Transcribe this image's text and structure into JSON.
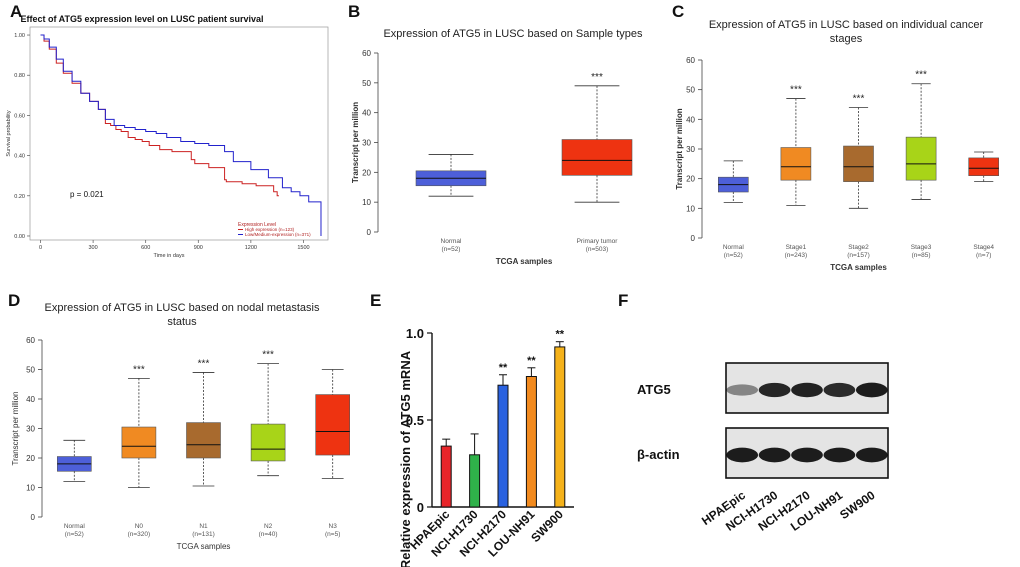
{
  "panel_labels": {
    "A": "A",
    "B": "B",
    "C": "C",
    "D": "D",
    "E": "E",
    "F": "F"
  },
  "colors": {
    "high": "#cc2222",
    "low": "#2222cc",
    "normal_box": "#4d5fd9",
    "primary_box": "#ee3311",
    "stage1": "#f08a22",
    "stage2": "#a86a2e",
    "stage3": "#a8d418",
    "stage4": "#ee3311",
    "bar_hpaepic": "#e8252a",
    "bar_h1730": "#2fb24a",
    "bar_h2170": "#2a62e0",
    "bar_nh91": "#f28a1e",
    "bar_sw900": "#f5b21a"
  },
  "chart_data": [
    {
      "id": "A",
      "type": "line",
      "title": "Effect of ATG5 expression level on LUSC patient survival",
      "xlabel": "Time in days",
      "ylabel": "Survival probability",
      "xlim": [
        -60,
        1640
      ],
      "ylim": [
        -0.02,
        1.04
      ],
      "xticks": [
        0,
        300,
        600,
        900,
        1200,
        1500
      ],
      "xtick_labels": [
        "0",
        "300",
        "600",
        "900",
        "1200",
        "1500"
      ],
      "yticks": [
        0,
        0.2,
        0.4,
        0.6,
        0.8,
        1.0
      ],
      "ytick_labels": [
        "0.00",
        "0.20",
        "0.40",
        "0.60",
        "0.80",
        "1.00"
      ],
      "annotation": "p = 0.021",
      "legend_title": "Expression Level",
      "series": [
        {
          "name": "High expression (n=123)",
          "color_key": "high",
          "x": [
            0,
            20,
            50,
            90,
            130,
            180,
            230,
            280,
            330,
            370,
            400,
            430,
            460,
            500,
            540,
            580,
            620,
            680,
            750,
            860,
            880,
            960,
            1050,
            1060,
            1150,
            1230,
            1330,
            1350,
            1360
          ],
          "y": [
            1.0,
            0.97,
            0.93,
            0.86,
            0.81,
            0.76,
            0.71,
            0.67,
            0.63,
            0.56,
            0.55,
            0.53,
            0.52,
            0.49,
            0.48,
            0.47,
            0.45,
            0.43,
            0.42,
            0.38,
            0.36,
            0.34,
            0.28,
            0.27,
            0.26,
            0.25,
            0.22,
            0.2,
            0.2
          ]
        },
        {
          "name": "Low/Medium-expression (n=371)",
          "color_key": "low",
          "x": [
            0,
            20,
            50,
            90,
            130,
            180,
            230,
            280,
            330,
            370,
            420,
            480,
            540,
            600,
            660,
            720,
            800,
            880,
            960,
            1050,
            1100,
            1200,
            1300,
            1380,
            1430,
            1480,
            1530,
            1600,
            1600
          ],
          "y": [
            1.0,
            0.98,
            0.94,
            0.88,
            0.82,
            0.77,
            0.71,
            0.67,
            0.63,
            0.58,
            0.55,
            0.54,
            0.53,
            0.52,
            0.51,
            0.49,
            0.47,
            0.46,
            0.45,
            0.42,
            0.37,
            0.33,
            0.29,
            0.24,
            0.22,
            0.2,
            0.17,
            0.14,
            0.0
          ]
        }
      ]
    },
    {
      "id": "B",
      "type": "box",
      "title": "Expression of ATG5 in LUSC based on Sample types",
      "xlabel": "TCGA samples",
      "ylabel": "Transcript per million",
      "ylim": [
        0,
        60
      ],
      "yticks": [
        0,
        10,
        20,
        30,
        40,
        50,
        60
      ],
      "categories": [
        "Normal",
        "Primary tumor"
      ],
      "n_labels": [
        "(n=52)",
        "(n=503)"
      ],
      "boxes": [
        {
          "min": 12,
          "q1": 15.5,
          "median": 18,
          "q3": 20.5,
          "max": 26,
          "color_key": "normal_box",
          "sig": ""
        },
        {
          "min": 10,
          "q1": 19,
          "median": 24,
          "q3": 31,
          "max": 49,
          "color_key": "primary_box",
          "sig": "***"
        }
      ]
    },
    {
      "id": "C",
      "type": "box",
      "title": "Expression of ATG5 in LUSC based on individual cancer stages",
      "title_lines": [
        "Expression of ATG5 in LUSC based on individual cancer",
        "stages"
      ],
      "xlabel": "TCGA samples",
      "ylabel": "Transcript per million",
      "ylim": [
        0,
        60
      ],
      "yticks": [
        0,
        10,
        20,
        30,
        40,
        50,
        60
      ],
      "categories": [
        "Normal",
        "Stage1",
        "Stage2",
        "Stage3",
        "Stage4"
      ],
      "n_labels": [
        "(n=52)",
        "(n=243)",
        "(n=157)",
        "(n=85)",
        "(n=7)"
      ],
      "boxes": [
        {
          "min": 12,
          "q1": 15.5,
          "median": 18,
          "q3": 20.5,
          "max": 26,
          "color_key": "normal_box",
          "sig": ""
        },
        {
          "min": 11,
          "q1": 19.5,
          "median": 24,
          "q3": 30.5,
          "max": 47,
          "color_key": "stage1",
          "sig": "***"
        },
        {
          "min": 10,
          "q1": 19,
          "median": 24,
          "q3": 31,
          "max": 44,
          "color_key": "stage2",
          "sig": "***"
        },
        {
          "min": 13,
          "q1": 19.5,
          "median": 25,
          "q3": 34,
          "max": 52,
          "color_key": "stage3",
          "sig": "***"
        },
        {
          "min": 19,
          "q1": 21,
          "median": 23.5,
          "q3": 27,
          "max": 29,
          "color_key": "stage4",
          "sig": ""
        }
      ]
    },
    {
      "id": "D",
      "type": "box",
      "title": "Expression of ATG5 in LUSC based on nodal metastasis status",
      "title_lines": [
        "Expression of ATG5 in LUSC based on nodal metastasis",
        "status"
      ],
      "xlabel": "TCGA samples",
      "ylabel": "Transcript per million",
      "ylim": [
        0,
        60
      ],
      "yticks": [
        0,
        10,
        20,
        30,
        40,
        50,
        60
      ],
      "categories": [
        "Normal",
        "N0",
        "N1",
        "N2",
        "N3"
      ],
      "n_labels": [
        "(n=52)",
        "(n=320)",
        "(n=131)",
        "(n=40)",
        "(n=5)"
      ],
      "boxes": [
        {
          "min": 12,
          "q1": 15.5,
          "median": 18,
          "q3": 20.5,
          "max": 26,
          "color_key": "normal_box",
          "sig": ""
        },
        {
          "min": 10,
          "q1": 20,
          "median": 24,
          "q3": 30.5,
          "max": 47,
          "color_key": "stage1",
          "sig": "***"
        },
        {
          "min": 10.5,
          "q1": 20,
          "median": 24.5,
          "q3": 32,
          "max": 49,
          "color_key": "stage2",
          "sig": "***"
        },
        {
          "min": 14,
          "q1": 19,
          "median": 23,
          "q3": 31.5,
          "max": 52,
          "color_key": "stage3",
          "sig": "***"
        },
        {
          "min": 13,
          "q1": 21,
          "median": 29,
          "q3": 41.5,
          "max": 50,
          "color_key": "stage4",
          "sig": ""
        }
      ]
    },
    {
      "id": "E",
      "type": "bar",
      "ylabel": "Relative expression of ATG5 mRNA",
      "ylim": [
        0,
        1.0
      ],
      "yticks": [
        0,
        0.5,
        1.0
      ],
      "ytick_labels": [
        "0",
        "0.5",
        "1.0"
      ],
      "categories": [
        "HPAEpic",
        "NCI-H1730",
        "NCI-H2170",
        "LOU-NH91",
        "SW900"
      ],
      "values": [
        0.35,
        0.3,
        0.7,
        0.75,
        0.92
      ],
      "errors": [
        0.04,
        0.12,
        0.06,
        0.05,
        0.03
      ],
      "sig": [
        "",
        "",
        "**",
        "**",
        "**"
      ],
      "color_keys": [
        "bar_hpaepic",
        "bar_h1730",
        "bar_h2170",
        "bar_nh91",
        "bar_sw900"
      ]
    }
  ],
  "blot": {
    "rows": [
      {
        "label": "ATG5",
        "intensity": [
          0.45,
          0.9,
          0.92,
          0.88,
          0.95
        ]
      },
      {
        "label": "β-actin",
        "intensity": [
          0.95,
          0.95,
          0.95,
          0.95,
          0.95
        ]
      }
    ],
    "lanes": [
      "HPAEpic",
      "NCI-H1730",
      "NCI-H2170",
      "LOU-NH91",
      "SW900"
    ]
  }
}
